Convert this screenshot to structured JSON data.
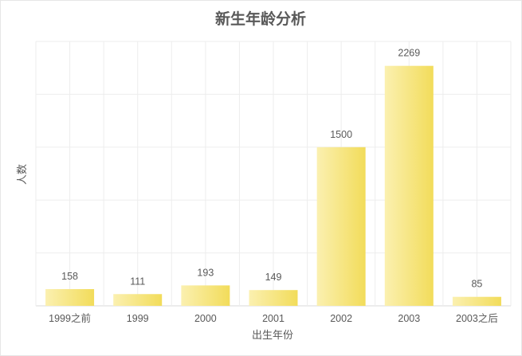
{
  "colors": {
    "bar_start": "#fbf0b0",
    "bar_end": "#f2dc5a",
    "grid": "#ededed",
    "axis": "#d9d9d9",
    "text": "#595959"
  },
  "chart_data": {
    "type": "bar",
    "title": "新生年龄分析",
    "xlabel": "出生年份",
    "ylabel": "人数",
    "categories": [
      "1999之前",
      "1999",
      "2000",
      "2001",
      "2002",
      "2003",
      "2003之后"
    ],
    "values": [
      158,
      111,
      193,
      149,
      1500,
      2269,
      85
    ],
    "ylim": [
      0,
      2500
    ],
    "grid": true,
    "legend": "none"
  }
}
